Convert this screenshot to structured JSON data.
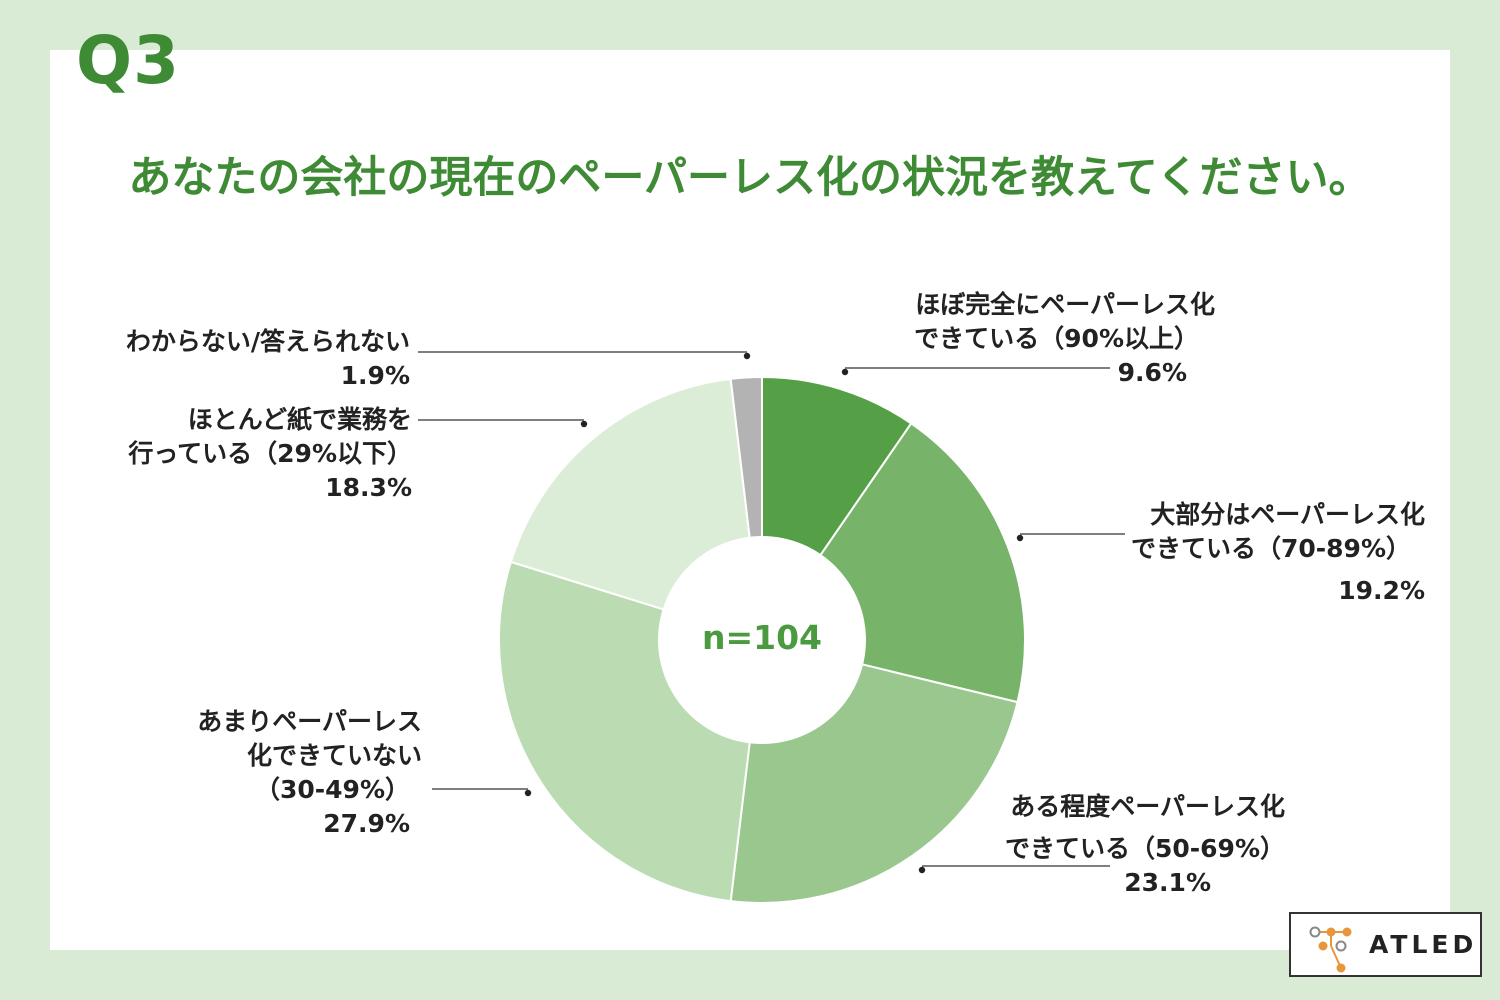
{
  "question_number": "Q3",
  "title": "あなたの会社の現在のペーパーレス化の状況を教えてください。",
  "center_label": "n=104",
  "logo_text": "ATLED",
  "colors": {
    "background": "#d9ead5",
    "accent": "#3e8a35",
    "slices": [
      "#55a046",
      "#77b46a",
      "#9ac78e",
      "#bbdcb3",
      "#dcedd7",
      "#b3b3b3"
    ]
  },
  "chart_data": {
    "type": "pie",
    "donut": true,
    "title": "あなたの会社の現在のペーパーレス化の状況を教えてください。",
    "center_text": "n=104",
    "slices": [
      {
        "label_lines": [
          "ほぼ完全にペーパーレス化",
          "できている（90%以上）"
        ],
        "value": 9.6,
        "value_text": "9.6%"
      },
      {
        "label_lines": [
          "大部分はペーパーレス化",
          "できている（70-89%）"
        ],
        "value": 19.2,
        "value_text": "19.2%"
      },
      {
        "label_lines": [
          "ある程度ペーパーレス化",
          "できている（50-69%）"
        ],
        "value": 23.1,
        "value_text": "23.1%"
      },
      {
        "label_lines": [
          "あまりペーパーレス",
          "化できていない",
          "（30-49%）"
        ],
        "value": 27.9,
        "value_text": "27.9%"
      },
      {
        "label_lines": [
          "ほとんど紙で業務を",
          "行っている（29%以下）"
        ],
        "value": 18.3,
        "value_text": "18.3%"
      },
      {
        "label_lines": [
          "わからない/答えられない"
        ],
        "value": 1.9,
        "value_text": "1.9%"
      }
    ]
  }
}
